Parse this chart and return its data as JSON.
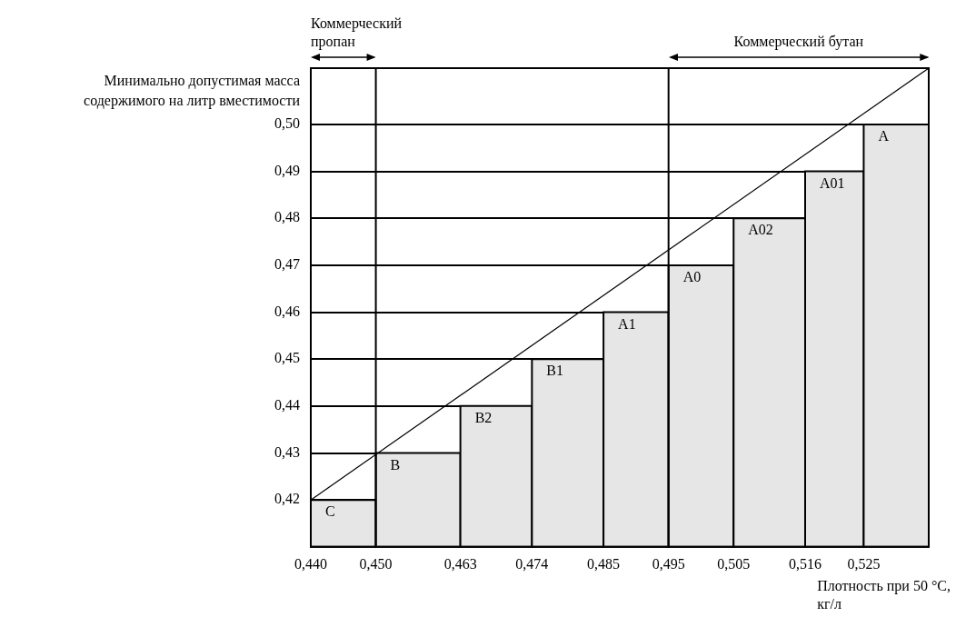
{
  "chart_data": {
    "type": "histogram",
    "ylabel": "Минимально допустимая масса содержимого на литр вместимости",
    "xlabel": "Плотность при 50 °C, кг/л",
    "bins": [
      0.44,
      0.45,
      0.463,
      0.474,
      0.485,
      0.495,
      0.505,
      0.516,
      0.525,
      0.535
    ],
    "values": [
      0.42,
      0.43,
      0.44,
      0.45,
      0.46,
      0.47,
      0.48,
      0.49,
      0.5
    ],
    "value_labels": [
      "C",
      "B",
      "B2",
      "B1",
      "A1",
      "A0",
      "A02",
      "A01",
      "A"
    ],
    "color": "#e6e6e6",
    "series": [
      {
        "type": "line",
        "color": "#000000",
        "x": [
          0.44,
          0.535
        ],
        "values": [
          0.42,
          0.512
        ]
      }
    ],
    "xlim": [
      0.44,
      0.535
    ],
    "xticks": [
      {
        "value": 0.44,
        "label": "0,440"
      },
      {
        "value": 0.45,
        "label": "0,450"
      },
      {
        "value": 0.463,
        "label": "0,463"
      },
      {
        "value": 0.474,
        "label": "0,474"
      },
      {
        "value": 0.485,
        "label": "0,485"
      },
      {
        "value": 0.495,
        "label": "0,495"
      },
      {
        "value": 0.505,
        "label": "0,505"
      },
      {
        "value": 0.516,
        "label": "0,516"
      },
      {
        "value": 0.525,
        "label": "0,525"
      }
    ],
    "ylim": [
      0.41,
      0.512
    ],
    "yticks": [
      {
        "value": 0.42,
        "label": "0,42"
      },
      {
        "value": 0.43,
        "label": "0,43"
      },
      {
        "value": 0.44,
        "label": "0,44"
      },
      {
        "value": 0.45,
        "label": "0,45"
      },
      {
        "value": 0.46,
        "label": "0,46"
      },
      {
        "value": 0.47,
        "label": "0,47"
      },
      {
        "value": 0.48,
        "label": "0,48"
      },
      {
        "value": 0.49,
        "label": "0,49"
      },
      {
        "value": 0.5,
        "label": "0,50"
      }
    ],
    "ref_lines": [
      {
        "axis": "x",
        "value": 0.45,
        "color": "#000000"
      },
      {
        "axis": "x",
        "value": 0.495,
        "color": "#000000"
      }
    ],
    "annotations": [
      "Коммерческий\nпропан",
      "Коммерческий бутан"
    ],
    "grid": "y",
    "legend": false
  }
}
